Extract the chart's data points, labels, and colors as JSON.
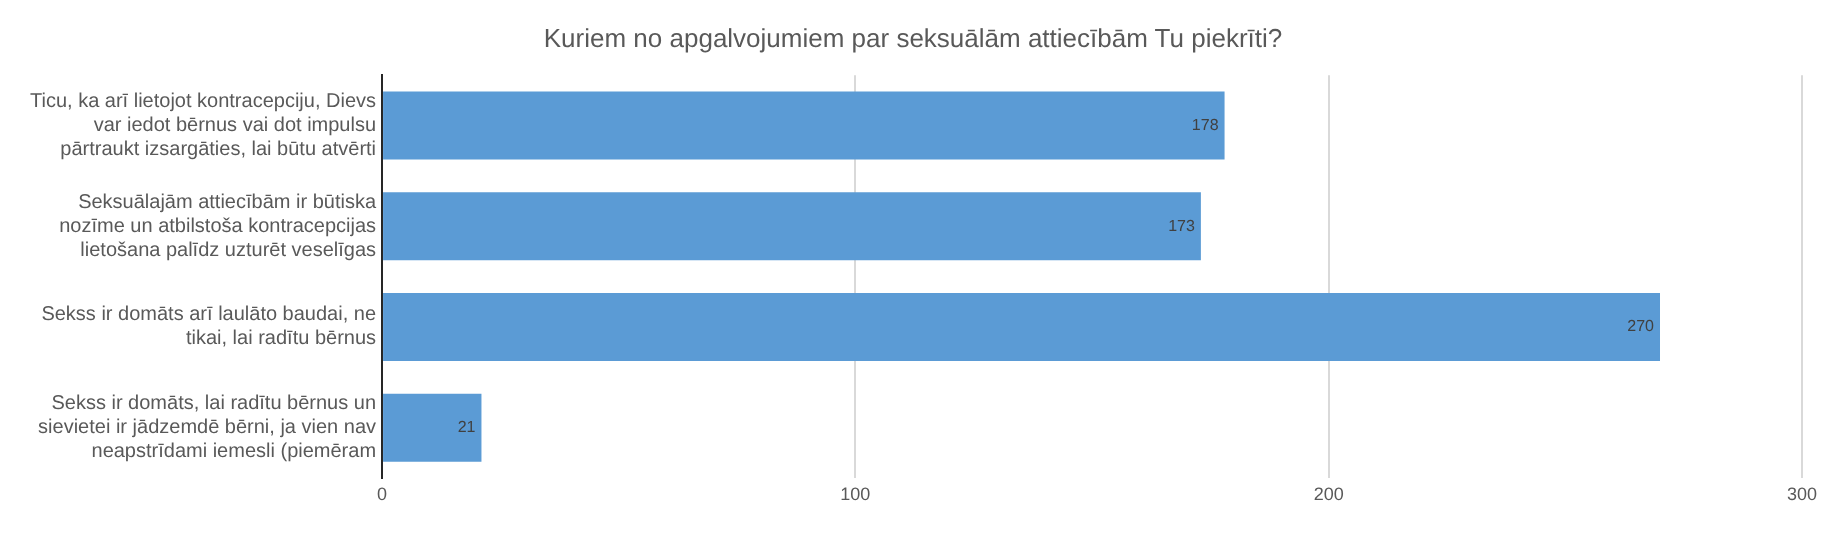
{
  "chart_data": {
    "type": "bar",
    "orientation": "horizontal",
    "title": "Kuriem no apgalvojumiem par seksuālām attiecībām Tu piekrīti?",
    "categories": [
      "Ticu, ka arī lietojot kontracepciju, Dievs var iedot bērnus vai dot impulsu pārtraukt izsargāties, lai būtu atvērti",
      "Seksuālajām attiecībām ir būtiska nozīme un atbilstoša kontracepcijas lietošana palīdz uzturēt veselīgas",
      "Sekss ir domāts arī laulāto baudai, ne tikai, lai radītu bērnus",
      "Sekss ir domāts, lai radītu bērnus un sievietei ir jādzemdē bērni, ja vien nav neapstrīdami iemesli (piemēram"
    ],
    "values": [
      178,
      173,
      270,
      21
    ],
    "color": "#5b9bd5",
    "xlim": [
      0,
      300
    ],
    "xticks": [
      0,
      100,
      200,
      300
    ],
    "grid": "x",
    "data_labels": true,
    "legend": false
  }
}
